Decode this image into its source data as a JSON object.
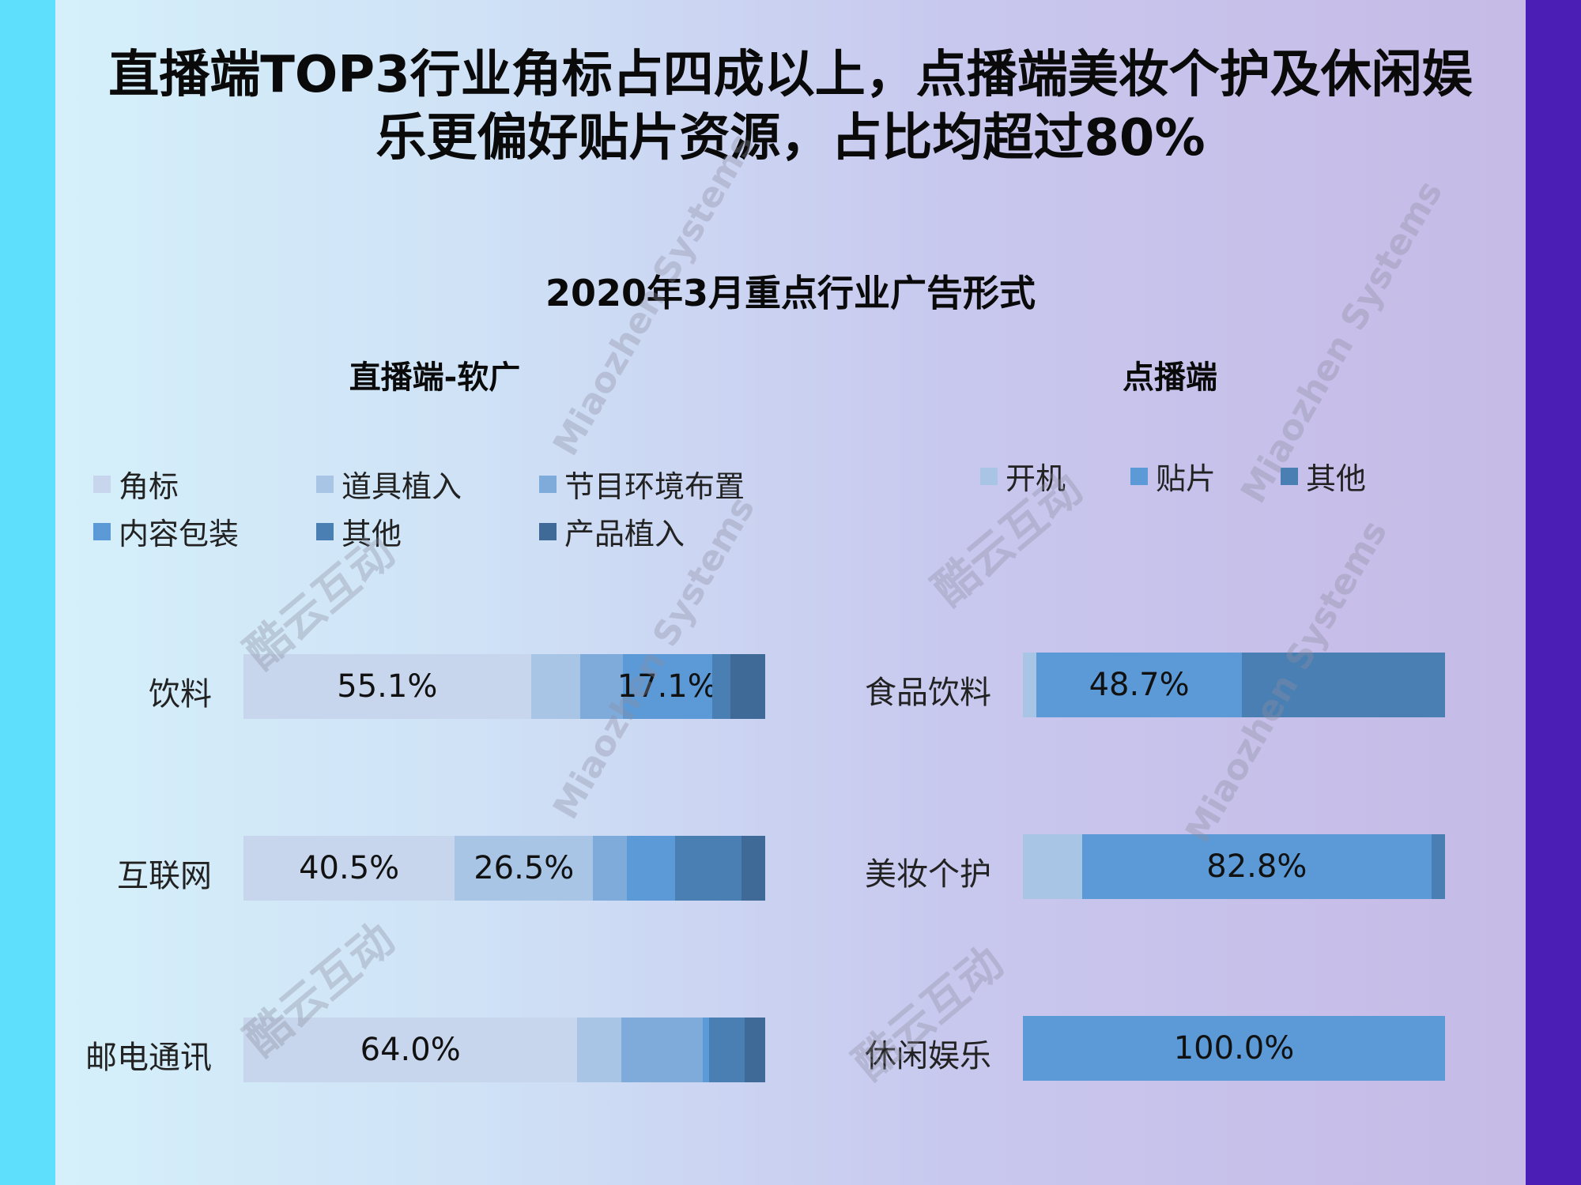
{
  "headline_line1": "直播端TOP3行业角标占四成以上，点播端美妆个护及休闲娱",
  "headline_line2": "乐更偏好贴片资源，占比均超过80%",
  "watermarks": [
    "Miaozhen Systems",
    "酷云互动"
  ],
  "colors": {
    "left_edge": "#5ee0fd",
    "right_edge": "#4b1fb6"
  },
  "chart_data": [
    {
      "type": "bar",
      "orientation": "horizontal",
      "stacked": true,
      "title": "2020年3月重点行业广告形式",
      "subtitle": "直播端-软广",
      "categories": [
        "饮料",
        "互联网",
        "邮电通讯"
      ],
      "series": [
        {
          "name": "角标",
          "color": "#c7d6ec",
          "values": [
            55.1,
            40.5,
            64.0
          ],
          "labels": [
            "55.1%",
            "40.5%",
            "64.0%"
          ]
        },
        {
          "name": "道具植入",
          "color": "#a8c5e6",
          "values": [
            9.4,
            26.5,
            8.4
          ],
          "labels": [
            "",
            "26.5%",
            ""
          ]
        },
        {
          "name": "节目环境布置",
          "color": "#7fabdb",
          "values": [
            8.2,
            6.5,
            15.6
          ],
          "labels": [
            "",
            "",
            ""
          ]
        },
        {
          "name": "内容包装",
          "color": "#5b9ad6",
          "values": [
            17.1,
            9.2,
            1.2
          ],
          "labels": [
            "17.1%",
            "",
            ""
          ]
        },
        {
          "name": "其他",
          "color": "#4a7fb3",
          "values": [
            3.6,
            12.7,
            6.8
          ],
          "labels": [
            "",
            "",
            ""
          ]
        },
        {
          "name": "产品植入",
          "color": "#3f6a98",
          "values": [
            6.6,
            4.6,
            4.0
          ],
          "labels": [
            "",
            "",
            ""
          ]
        }
      ],
      "xlim": [
        0,
        100
      ]
    },
    {
      "type": "bar",
      "orientation": "horizontal",
      "stacked": true,
      "subtitle": "点播端",
      "categories": [
        "食品饮料",
        "美妆个护",
        "休闲娱乐"
      ],
      "series": [
        {
          "name": "开机",
          "color": "#a8c5e6",
          "values": [
            3.2,
            14.0,
            0
          ],
          "labels": [
            "",
            "",
            ""
          ]
        },
        {
          "name": "贴片",
          "color": "#5b9ad6",
          "values": [
            48.7,
            82.8,
            100.0
          ],
          "labels": [
            "48.7%",
            "82.8%",
            "100.0%"
          ]
        },
        {
          "name": "其他",
          "color": "#4a7fb3",
          "values": [
            48.1,
            3.2,
            0
          ],
          "labels": [
            "",
            "",
            ""
          ]
        }
      ],
      "xlim": [
        0,
        100
      ]
    }
  ]
}
